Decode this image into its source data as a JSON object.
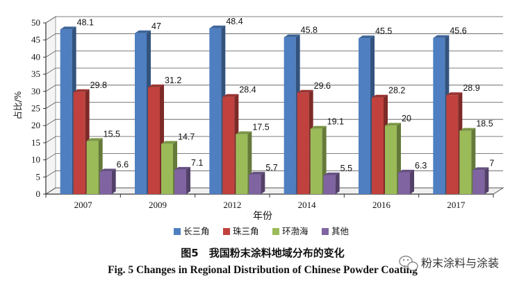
{
  "chart_data": {
    "type": "bar",
    "categories": [
      "2007",
      "2009",
      "2012",
      "2014",
      "2016",
      "2017"
    ],
    "series": [
      {
        "name": "长三角",
        "color": "#4f7fc1",
        "values": [
          48.1,
          47,
          48.4,
          45.8,
          45.5,
          45.6
        ]
      },
      {
        "name": "珠三角",
        "color": "#c0413d",
        "values": [
          29.8,
          31.2,
          28.4,
          29.6,
          28.2,
          28.9
        ]
      },
      {
        "name": "环渤海",
        "color": "#9bbb59",
        "values": [
          15.5,
          14.7,
          17.5,
          19.1,
          20,
          18.5
        ]
      },
      {
        "name": "其他",
        "color": "#8064a2",
        "values": [
          6.6,
          7.1,
          5.7,
          5.5,
          6.3,
          7
        ]
      }
    ],
    "value_labels": [
      [
        "48.1",
        "47",
        "48.4",
        "45.8",
        "45.5",
        "45.6"
      ],
      [
        "29.8",
        "31.2",
        "28.4",
        "29.6",
        "28.2",
        "28.9"
      ],
      [
        "15.5",
        "14.7",
        "17.5",
        "19.1",
        "20",
        "18.5"
      ],
      [
        "6.6",
        "7.1",
        "5.7",
        "5.5",
        "6.3",
        "7"
      ]
    ],
    "yticks": [
      "0",
      "5",
      "10",
      "15",
      "20",
      "25",
      "30",
      "35",
      "40",
      "45",
      "50"
    ],
    "ylim": [
      0,
      50
    ],
    "xlabel": "年份",
    "ylabel": "占比/%",
    "legend": "bottom",
    "grid": true
  },
  "caption": {
    "cn": "图5　我国粉末涂料地域分布的变化",
    "en": "Fig. 5   Changes in Regional Distribution of Chinese Powder Coating"
  },
  "watermark": "粉末涂料与涂装"
}
